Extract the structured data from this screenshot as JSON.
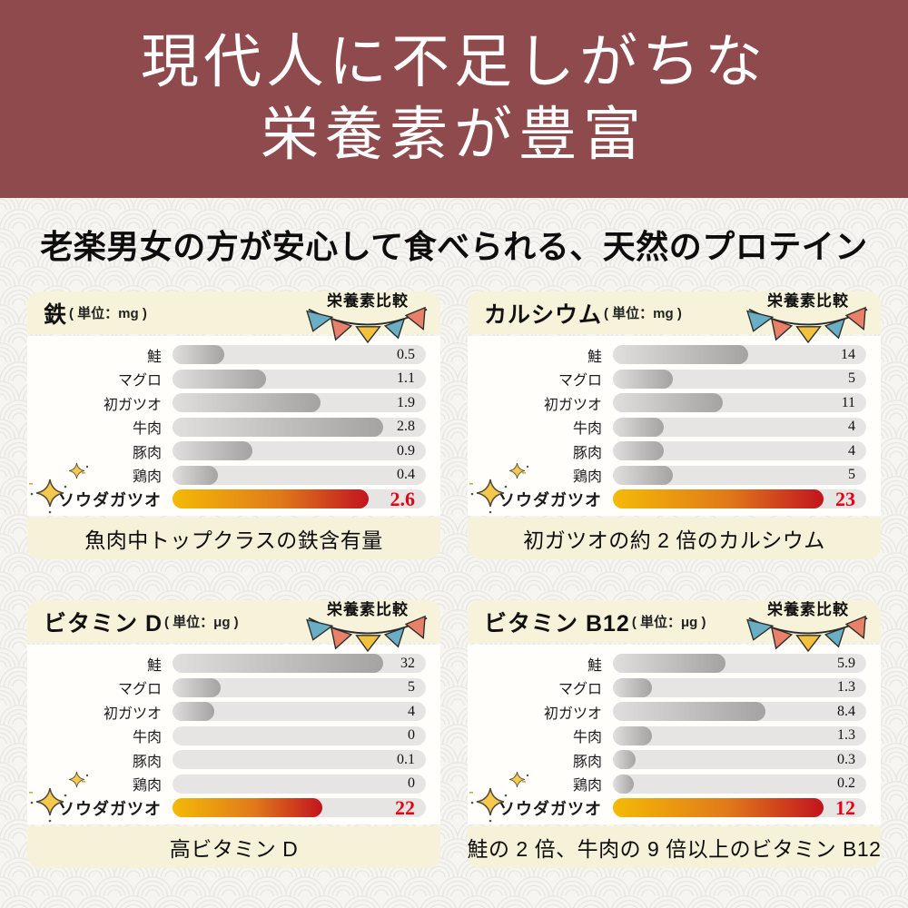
{
  "banner": {
    "line1": "現代人に不足しがちな",
    "line2": "栄養素が豊富",
    "bg_color": "#8e4a4c"
  },
  "subtitle": "老楽男女の方が安心して食べられる、天然のプロテイン",
  "badge_label": "栄養素比較",
  "icons": {
    "bunting": "bunting-flags-icon",
    "sparkle": "sparkle-icon"
  },
  "colors": {
    "banner_bg": "#8e4a4c",
    "panel_accent_bg": "#f5f2d9",
    "bar_track": "#e7e5e3",
    "bar_gray_start": "#e1dfdd",
    "bar_gray_end": "#a5a3a1",
    "bar_highlight_start": "#f4ba06",
    "bar_highlight_end": "#c2141f",
    "highlight_value_text": "#e60014",
    "flag_blue": "#6aaec6",
    "flag_coral": "#e8806a",
    "flag_yellow": "#f2c13d",
    "sparkle_gold": "#f6c84c"
  },
  "chart_data": [
    {
      "id": "iron",
      "type": "bar",
      "title": "鉄",
      "unit_label": "( 単位：mg )",
      "badge": "栄養素比較",
      "categories": [
        "鮭",
        "マグロ",
        "初ガツオ",
        "牛肉",
        "豚肉",
        "鶏肉",
        "ソウダガツオ"
      ],
      "values": [
        0.5,
        1.1,
        1.9,
        2.8,
        0.9,
        0.4,
        2.6
      ],
      "highlight_index": 6,
      "highlight_value": 2.6,
      "caption": "魚肉中トップクラスの鉄含有量"
    },
    {
      "id": "calcium",
      "type": "bar",
      "title": "カルシウム",
      "unit_label": "( 単位：mg )",
      "badge": "栄養素比較",
      "categories": [
        "鮭",
        "マグロ",
        "初ガツオ",
        "牛肉",
        "豚肉",
        "鶏肉",
        "ソウダガツオ"
      ],
      "values": [
        14,
        5,
        11,
        4,
        4,
        5,
        23
      ],
      "highlight_index": 6,
      "highlight_value": 23,
      "caption": "初ガツオの約 2 倍のカルシウム"
    },
    {
      "id": "vitamin-d",
      "type": "bar",
      "title": "ビタミン D",
      "unit_label": "( 単位：μg )",
      "badge": "栄養素比較",
      "categories": [
        "鮭",
        "マグロ",
        "初ガツオ",
        "牛肉",
        "豚肉",
        "鶏肉",
        "ソウダガツオ"
      ],
      "values": [
        32,
        5,
        4,
        0,
        0.1,
        0,
        22
      ],
      "highlight_index": 6,
      "highlight_value": 22,
      "caption": "高ビタミン D"
    },
    {
      "id": "vitamin-b12",
      "type": "bar",
      "title": "ビタミン B12",
      "unit_label": "( 単位：μg )",
      "badge": "栄養素比較",
      "categories": [
        "鮭",
        "マグロ",
        "初ガツオ",
        "牛肉",
        "豚肉",
        "鶏肉",
        "ソウダガツオ"
      ],
      "values": [
        5.9,
        1.3,
        8.4,
        1.3,
        0.3,
        0.2,
        12
      ],
      "highlight_index": 6,
      "highlight_value": 12,
      "caption": "鮭の 2 倍、牛肉の 9 倍以上のビタミン B12"
    }
  ]
}
